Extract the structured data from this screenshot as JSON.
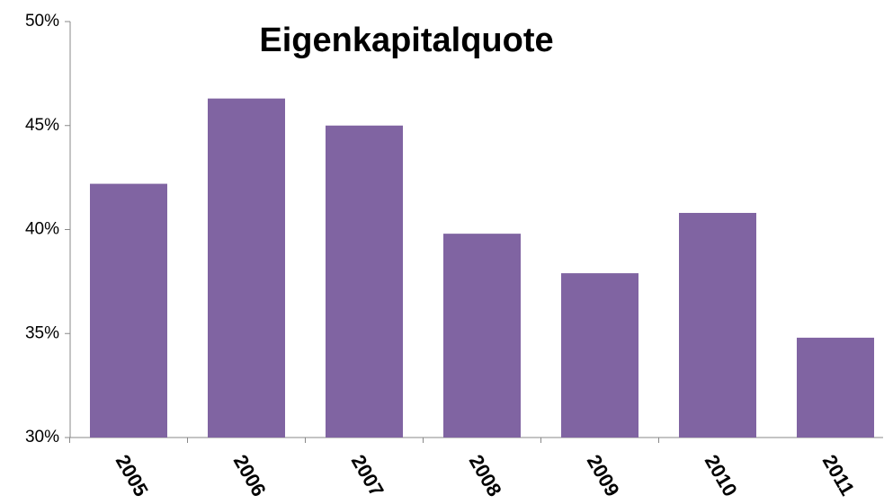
{
  "chart_data": {
    "type": "bar",
    "title": "Eigenkapitalquote",
    "categories": [
      "2005",
      "2006",
      "2007",
      "2008",
      "2009",
      "2010",
      "2011"
    ],
    "values": [
      42.2,
      46.3,
      45.0,
      39.8,
      37.9,
      40.8,
      34.8
    ],
    "color": "#8064a2",
    "ylim": [
      30,
      50
    ],
    "yticks": [
      {
        "value": 30,
        "label": "30%"
      },
      {
        "value": 35,
        "label": "35%"
      },
      {
        "value": 40,
        "label": "40%"
      },
      {
        "value": 45,
        "label": "45%"
      },
      {
        "value": 50,
        "label": "50%"
      }
    ],
    "grid": false
  }
}
